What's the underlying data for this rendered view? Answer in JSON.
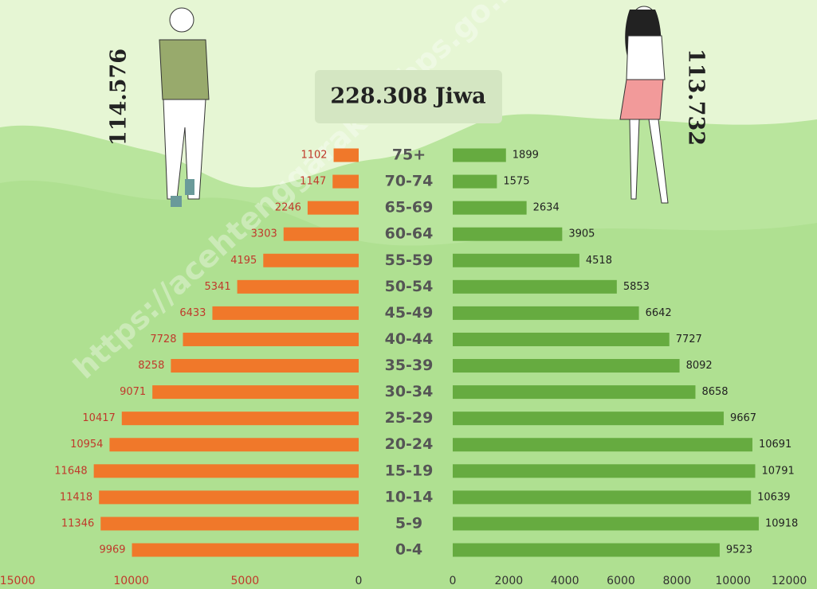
{
  "total_label": "228.308 Jiwa",
  "watermark": "https://acehtenggarakab.bps.go.id",
  "chart_data": {
    "type": "pyramid",
    "categories": [
      "75+",
      "70-74",
      "65-69",
      "60-64",
      "55-59",
      "50-54",
      "45-49",
      "40-44",
      "35-39",
      "30-34",
      "25-29",
      "20-24",
      "15-19",
      "10-14",
      "5-9",
      "0-4"
    ],
    "series": [
      {
        "total": "114.576",
        "color": "#f0782a",
        "label_color": "#c0392b",
        "values": [
          1102,
          1147,
          2246,
          3303,
          4195,
          5341,
          6433,
          7728,
          8258,
          9071,
          10417,
          10954,
          11648,
          11418,
          11346,
          9969
        ],
        "xlim": [
          0,
          15000
        ],
        "xticks": [
          0,
          5000,
          10000,
          15000
        ]
      },
      {
        "total": "113.732",
        "color": "#66ab40",
        "label_color": "#222222",
        "values": [
          1899,
          1575,
          2634,
          3905,
          4518,
          5853,
          6642,
          7727,
          8092,
          8658,
          9667,
          10691,
          10791,
          10639,
          10918,
          9523
        ],
        "xlim": [
          0,
          12000
        ],
        "xticks": [
          0,
          2000,
          4000,
          6000,
          8000,
          10000,
          12000
        ]
      }
    ]
  }
}
